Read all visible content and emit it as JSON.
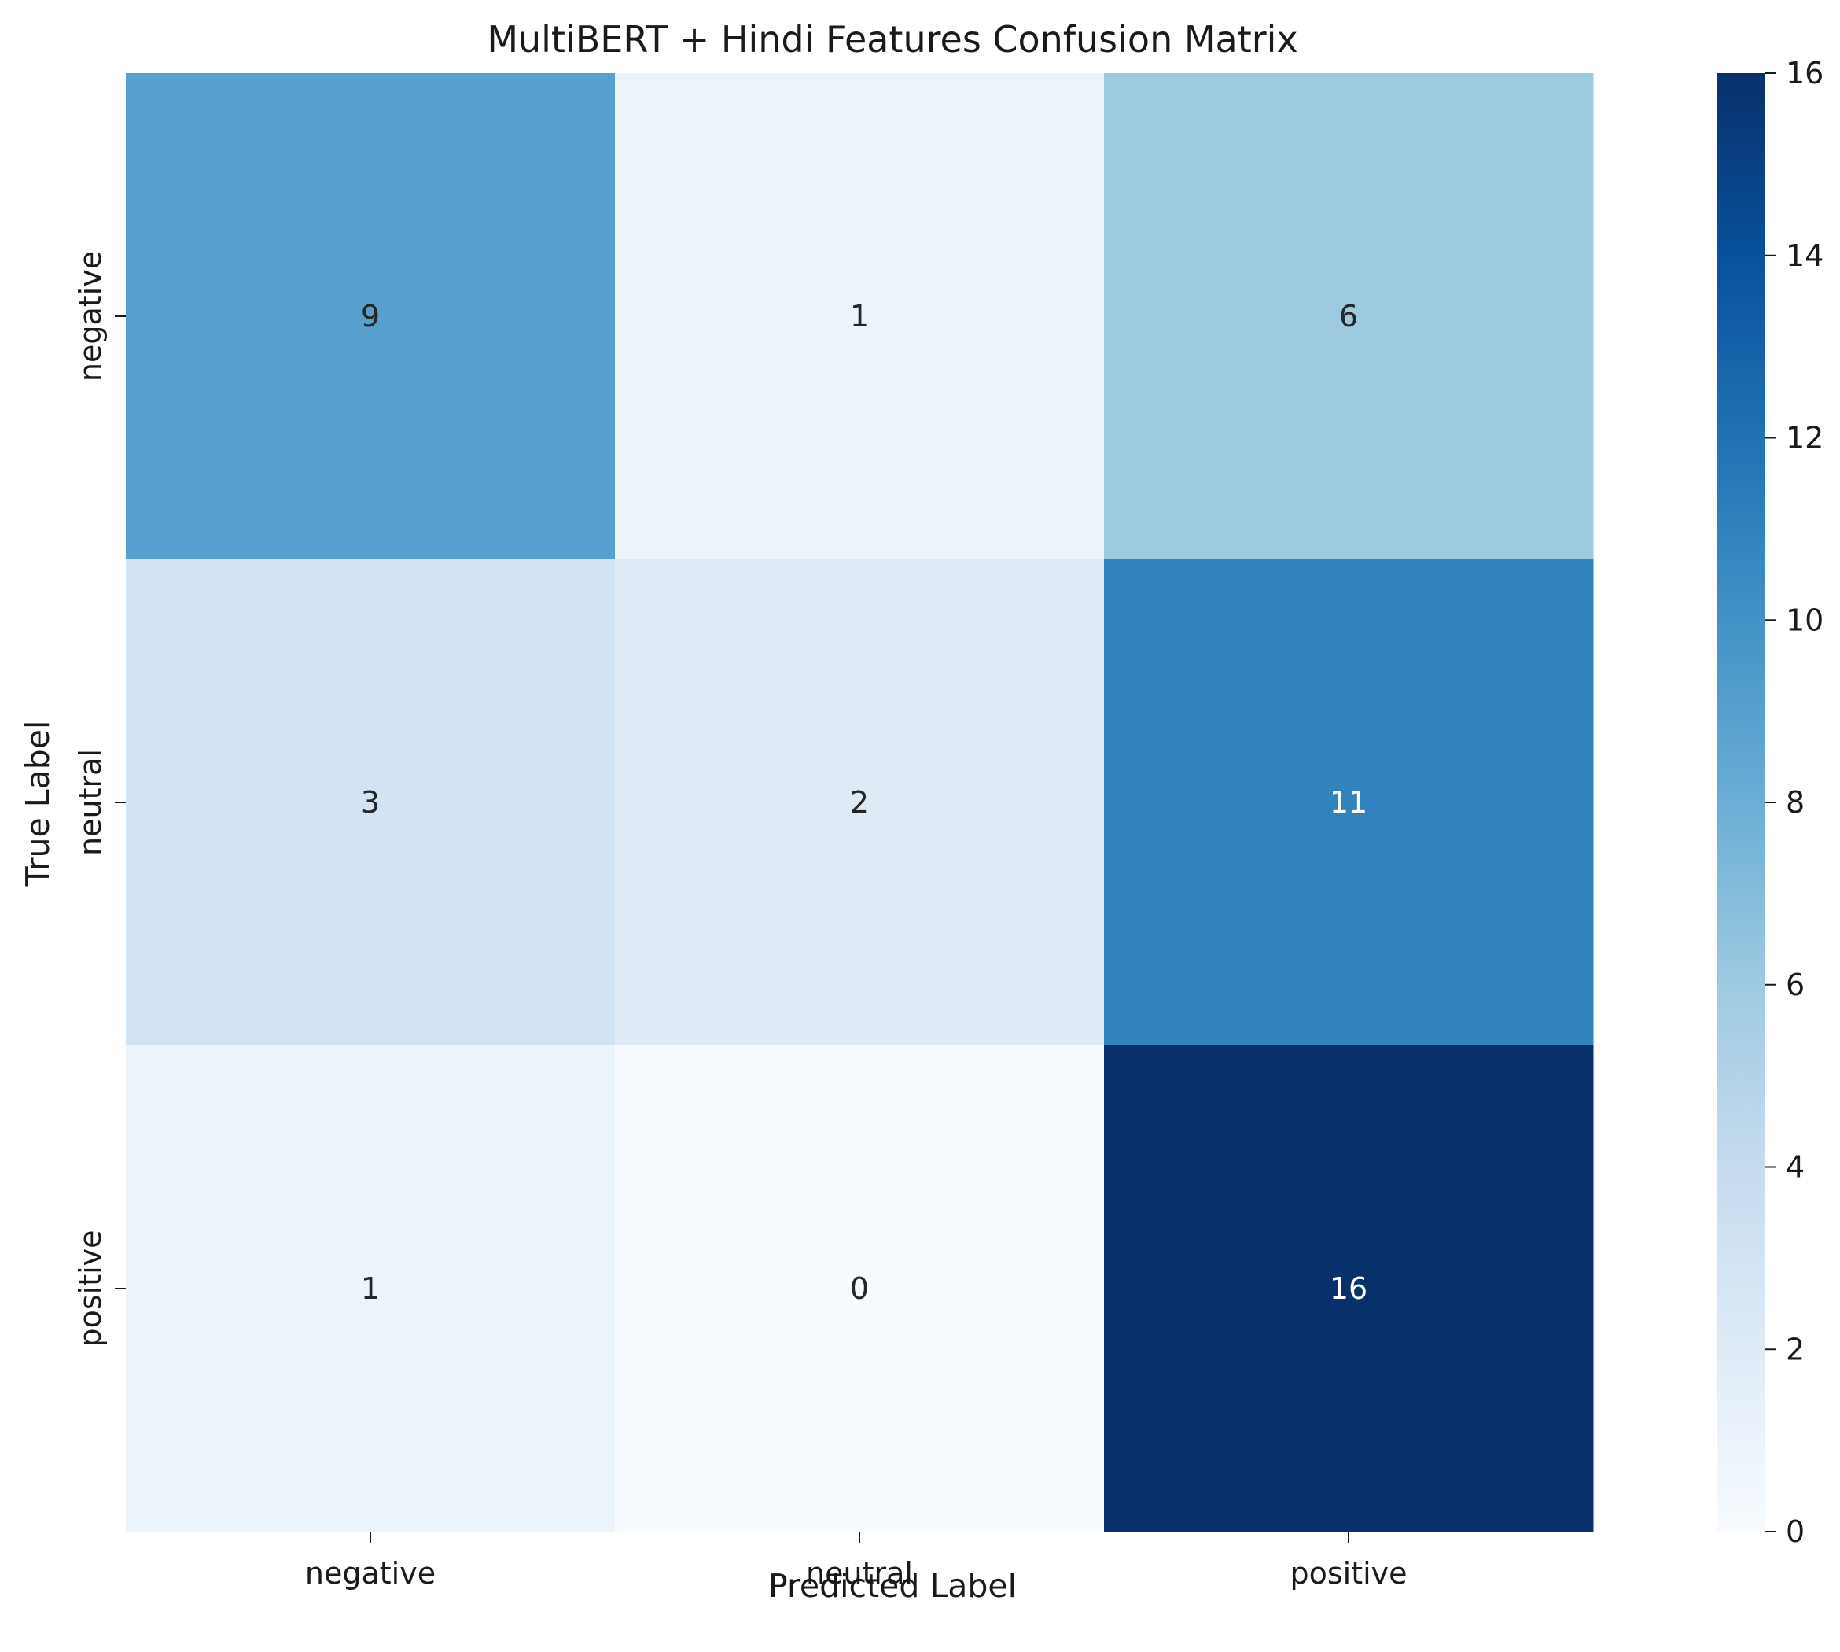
{
  "chart_data": {
    "type": "heatmap",
    "title": "MultiBERT + Hindi Features Confusion Matrix",
    "xlabel": "Predicted Label",
    "ylabel": "True Label",
    "x_categories": [
      "negative",
      "neutral",
      "positive"
    ],
    "y_categories": [
      "negative",
      "neutral",
      "positive"
    ],
    "values": [
      [
        9,
        1,
        6
      ],
      [
        3,
        2,
        11
      ],
      [
        1,
        0,
        16
      ]
    ],
    "colorbar": {
      "min": 0,
      "max": 16,
      "ticks": [
        "0",
        "2",
        "4",
        "6",
        "8",
        "10",
        "12",
        "14",
        "16"
      ],
      "colormap": "Blues"
    },
    "grid": false,
    "legend": "colorbar-right"
  }
}
